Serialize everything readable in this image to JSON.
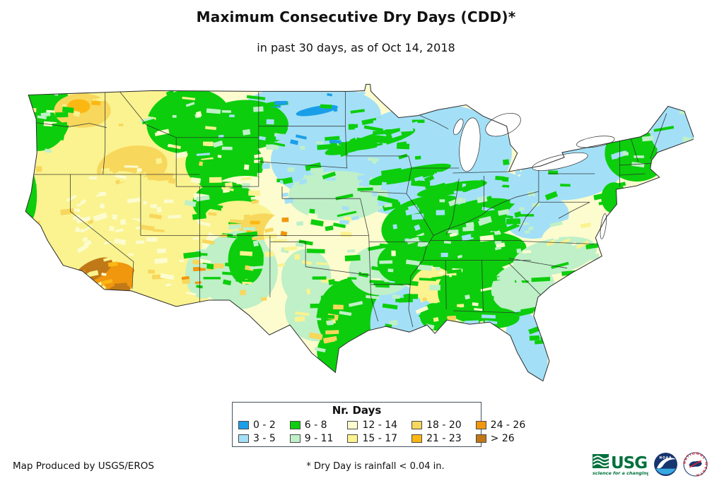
{
  "page": {
    "title": "Maximum Consecutive Dry Days (CDD)*",
    "subtitle": "in past 30 days, as of Oct 14, 2018"
  },
  "legend": {
    "title": "Nr. Days",
    "items": [
      {
        "label": "0 - 2",
        "color": "#1B9EE8"
      },
      {
        "label": "3 - 5",
        "color": "#A3E0F7"
      },
      {
        "label": "6 - 8",
        "color": "#0CCE0C"
      },
      {
        "label": "9 - 11",
        "color": "#BFF0C8"
      },
      {
        "label": "12 - 14",
        "color": "#FCFCCF"
      },
      {
        "label": "15 - 17",
        "color": "#FAF38F"
      },
      {
        "label": "18 - 20",
        "color": "#F7D75C"
      },
      {
        "label": "21 - 23",
        "color": "#FCB713"
      },
      {
        "label": "24 - 26",
        "color": "#F0970E"
      },
      {
        "label": "> 26",
        "color": "#C07916"
      }
    ]
  },
  "map": {
    "border_color": "#2b2b2b",
    "water_color": "#ffffff"
  },
  "footer": {
    "credit": "Map Produced by USGS/EROS",
    "note": "* Dry Day is rainfall < 0.04 in."
  },
  "logos": {
    "usgs": {
      "name": "USGS",
      "tagline": "science for a changing world",
      "color": "#00703C"
    },
    "noaa": {
      "name": "NOAA",
      "navy": "#17356F",
      "cyan": "#38A9E0"
    },
    "nws": {
      "ring_text": "NATIONAL WEATHER SERVICE",
      "red": "#D22630",
      "navy": "#17356F"
    }
  }
}
